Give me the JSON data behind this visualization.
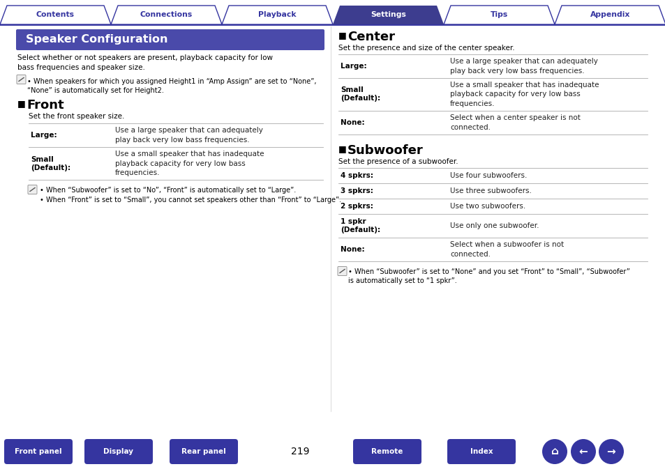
{
  "bg_color": "#ffffff",
  "header_tabs": [
    "Contents",
    "Connections",
    "Playback",
    "Settings",
    "Tips",
    "Appendix"
  ],
  "active_tab": "Settings",
  "tab_bg_active": "#3d3d8f",
  "tab_bg_inactive": "#ffffff",
  "tab_text_active": "#ffffff",
  "tab_text_inactive": "#3535a0",
  "tab_border": "#3535a0",
  "header_line_color": "#3535a0",
  "title_box_text": "Speaker Configuration",
  "title_box_bg": "#4a4aaa",
  "title_box_text_color": "#ffffff",
  "body_text_color": "#000000",
  "section_header_color": "#000000",
  "label_bold_color": "#000000",
  "desc_text_color": "#222222",
  "line_color": "#aaaaaa",
  "footer_btn_bg": "#3535a0",
  "footer_btn_text": "#ffffff",
  "footer_page_num": "219",
  "footer_buttons": [
    "Front panel",
    "Display",
    "Rear panel",
    "Remote",
    "Index"
  ],
  "left_intro": "Select whether or not speakers are present, playback capacity for low\nbass frequencies and speaker size.",
  "left_note1": "When speakers for which you assigned Height1 in “Amp Assign” are set to “None”,\n“None” is automatically set for Height2.",
  "front_section_title": "Front",
  "front_intro": "Set the front speaker size.",
  "front_rows": [
    {
      "label": "Large:",
      "desc": "Use a large speaker that can adequately\nplay back very low bass frequencies.",
      "label_bold": true
    },
    {
      "label": "Small\n(Default):",
      "desc": "Use a small speaker that has inadequate\nplayback capacity for very low bass\nfrequencies.",
      "label_bold": true
    }
  ],
  "front_note1": "When “Subwoofer” is set to “No”, “Front” is automatically set to “Large”.",
  "front_note2": "When “Front” is set to “Small”, you cannot set speakers other than “Front” to “Large”.",
  "center_section_title": "Center",
  "center_intro": "Set the presence and size of the center speaker.",
  "center_rows": [
    {
      "label": "Large:",
      "desc": "Use a large speaker that can adequately\nplay back very low bass frequencies.",
      "label_bold": true
    },
    {
      "label": "Small\n(Default):",
      "desc": "Use a small speaker that has inadequate\nplayback capacity for very low bass\nfrequencies.",
      "label_bold": true
    },
    {
      "label": "None:",
      "desc": "Select when a center speaker is not\nconnected.",
      "label_bold": true
    }
  ],
  "subwoofer_section_title": "Subwoofer",
  "subwoofer_intro": "Set the presence of a subwoofer.",
  "subwoofer_rows": [
    {
      "label": "4 spkrs:",
      "desc": "Use four subwoofers.",
      "label_bold": true
    },
    {
      "label": "3 spkrs:",
      "desc": "Use three subwoofers.",
      "label_bold": true
    },
    {
      "label": "2 spkrs:",
      "desc": "Use two subwoofers.",
      "label_bold": true
    },
    {
      "label": "1 spkr\n(Default):",
      "desc": "Use only one subwoofer.",
      "label_bold": true
    },
    {
      "label": "None:",
      "desc": "Select when a subwoofer is not\nconnected.",
      "label_bold": true
    }
  ],
  "subwoofer_note": "When “Subwoofer” is set to “None” and you set “Front” to “Small”, “Subwoofer”\nis automatically set to “1 spkr”."
}
